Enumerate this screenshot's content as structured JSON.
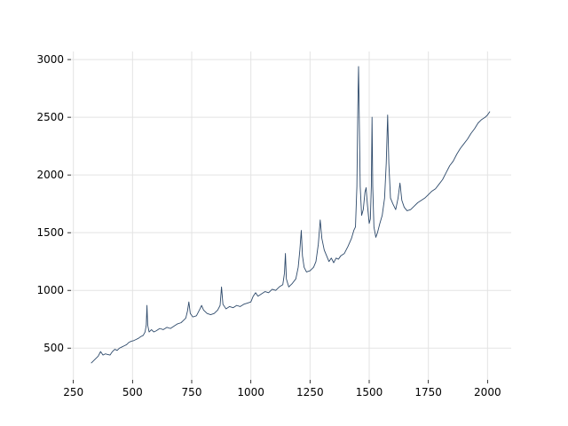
{
  "chart_data": {
    "type": "line",
    "x": [
      325,
      335,
      345,
      355,
      365,
      375,
      385,
      395,
      405,
      415,
      425,
      435,
      445,
      455,
      465,
      475,
      485,
      495,
      505,
      515,
      525,
      535,
      545,
      553,
      558,
      561,
      564,
      570,
      580,
      590,
      600,
      615,
      630,
      645,
      660,
      675,
      690,
      705,
      715,
      725,
      732,
      738,
      744,
      755,
      770,
      785,
      792,
      800,
      815,
      830,
      845,
      860,
      870,
      876,
      882,
      895,
      910,
      925,
      940,
      955,
      970,
      985,
      1000,
      1010,
      1020,
      1030,
      1045,
      1060,
      1075,
      1090,
      1105,
      1120,
      1135,
      1142,
      1146,
      1150,
      1160,
      1175,
      1190,
      1200,
      1207,
      1213,
      1218,
      1225,
      1235,
      1250,
      1265,
      1275,
      1285,
      1293,
      1300,
      1310,
      1320,
      1330,
      1340,
      1350,
      1360,
      1370,
      1380,
      1395,
      1410,
      1425,
      1435,
      1442,
      1448,
      1452,
      1455,
      1458,
      1462,
      1468,
      1475,
      1482,
      1487,
      1492,
      1500,
      1505,
      1509,
      1512,
      1515,
      1520,
      1528,
      1535,
      1545,
      1555,
      1565,
      1572,
      1578,
      1583,
      1590,
      1600,
      1612,
      1622,
      1630,
      1638,
      1648,
      1660,
      1675,
      1690,
      1705,
      1720,
      1735,
      1750,
      1765,
      1780,
      1795,
      1810,
      1825,
      1840,
      1855,
      1870,
      1885,
      1900,
      1915,
      1930,
      1945,
      1960,
      1975,
      1990,
      2000,
      2010
    ],
    "series": [
      {
        "color": "#2e4a6b",
        "values": [
          370,
          390,
          410,
          430,
          470,
          440,
          450,
          445,
          440,
          470,
          490,
          480,
          500,
          510,
          520,
          530,
          550,
          560,
          565,
          575,
          585,
          600,
          610,
          640,
          700,
          870,
          700,
          640,
          660,
          640,
          650,
          670,
          660,
          680,
          670,
          690,
          710,
          720,
          740,
          760,
          820,
          900,
          800,
          770,
          780,
          840,
          870,
          830,
          800,
          790,
          800,
          830,
          870,
          1030,
          880,
          840,
          860,
          850,
          870,
          860,
          880,
          890,
          900,
          950,
          980,
          950,
          970,
          990,
          980,
          1010,
          1000,
          1030,
          1050,
          1150,
          1320,
          1100,
          1030,
          1060,
          1100,
          1200,
          1350,
          1520,
          1300,
          1200,
          1160,
          1170,
          1200,
          1250,
          1400,
          1610,
          1450,
          1350,
          1300,
          1250,
          1280,
          1240,
          1280,
          1270,
          1300,
          1320,
          1380,
          1450,
          1520,
          1550,
          1900,
          2600,
          2940,
          2500,
          1900,
          1650,
          1700,
          1850,
          1890,
          1750,
          1580,
          1620,
          1900,
          2500,
          1900,
          1550,
          1460,
          1500,
          1580,
          1650,
          1800,
          2100,
          2520,
          2100,
          1800,
          1750,
          1700,
          1800,
          1930,
          1780,
          1720,
          1690,
          1700,
          1730,
          1760,
          1780,
          1800,
          1830,
          1860,
          1880,
          1920,
          1960,
          2020,
          2080,
          2120,
          2180,
          2230,
          2270,
          2310,
          2360,
          2400,
          2450,
          2480,
          2500,
          2520,
          2550
        ]
      }
    ],
    "xlim": [
      240,
      2100
    ],
    "ylim": [
      225,
      3070
    ],
    "xticks": [
      250,
      500,
      750,
      1000,
      1250,
      1500,
      1750,
      2000
    ],
    "yticks": [
      500,
      1000,
      1500,
      2000,
      2500,
      3000
    ],
    "grid": true
  }
}
